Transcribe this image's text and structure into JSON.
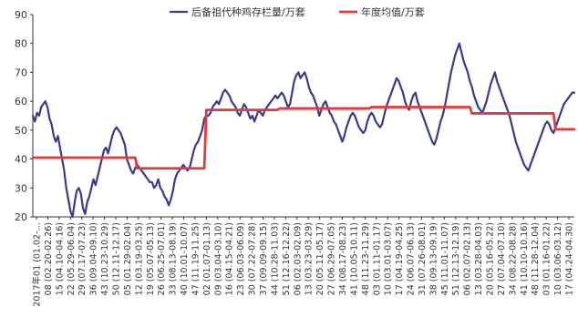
{
  "chart_data": {
    "type": "line",
    "title": "",
    "xlabel": "",
    "ylabel": "",
    "ylim": [
      20,
      90
    ],
    "yticks": [
      20,
      30,
      40,
      50,
      60,
      70,
      80,
      90
    ],
    "grid": false,
    "legend_position": "top-right",
    "x_tick_labels": [
      "2017年01 (01.02-…",
      "08 (02.20-02.26)",
      "15 (04.10-04.16)",
      "22 (05.29-06.04)",
      "29 (07.17-07.23)",
      "36 (09.04-09.10)",
      "43 (10.23-10.29)",
      "50 (12.11-12.17)",
      "05 (01.29-02.04)",
      "12 (03.19-03.25)",
      "19 (05.07-05.13)",
      "26 (06.25-07.01)",
      "33 (08.13-08.19)",
      "40 (10.01-10.07)",
      "47 (11.19-11.25)",
      "02 (01.07-01.13)",
      "09 (03.04-03.10)",
      "16 (04.15-04.21)",
      "23 (06.03-06.09)",
      "30 (07.22-07.28)",
      "37 (09.09-09.15)",
      "44 (10.28-11.03)",
      "51 (12.16-12.22)",
      "06 (02.03-02.09)",
      "13 (03.23-03.29)",
      "20 (05.11-05.17)",
      "27 (06.29-07.05)",
      "34 (08.17-08.23)",
      "41 (10.05-10.11)",
      "48 (11.23-11.29)",
      "03 (01.11-01.17)",
      "10 (03.01-03.07)",
      "17 (04.19-04.25)",
      "24 (06.07-06.13)",
      "31 (07.26-08.01)",
      "38 (09.13-09.19)",
      "45 (11.01-11.07)",
      "51 (12.13-12.19)",
      "06 (02.07-02.13)",
      "13 (03.28-04.03)",
      "20 (05.16-05.22)",
      "27 (07.04-07.10)",
      "34 (08.22-08.28)",
      "41 (10.10-10.16)",
      "48 (11.28-12.04)",
      "03 (01.16-01.22)",
      "10 (03.06-03.12)",
      "17 (04.24-04.30)"
    ],
    "series": [
      {
        "name": "后备祖代种鸡存栏量/万套",
        "color": "#3a3a8c",
        "values": [
          55,
          53,
          56,
          55,
          58,
          59,
          60,
          58,
          54,
          52,
          48,
          46,
          48,
          44,
          40,
          36,
          30,
          26,
          22,
          20,
          25,
          29,
          30,
          28,
          23,
          21,
          25,
          27,
          30,
          33,
          31,
          34,
          37,
          40,
          43,
          44,
          42,
          45,
          48,
          50,
          51,
          50,
          49,
          47,
          45,
          40,
          38,
          36,
          35,
          37,
          38,
          37,
          36,
          35,
          34,
          33,
          32,
          32,
          30,
          31,
          33,
          30,
          29,
          27,
          26,
          24,
          26,
          29,
          33,
          35,
          36,
          37,
          38,
          37,
          36,
          37,
          40,
          43,
          45,
          46,
          48,
          50,
          54,
          55,
          55,
          56,
          58,
          59,
          60,
          59,
          61,
          63,
          64,
          63,
          62,
          60,
          59,
          58,
          56,
          55,
          57,
          59,
          58,
          56,
          54,
          55,
          53,
          55,
          57,
          56,
          55,
          57,
          58,
          59,
          60,
          61,
          62,
          61,
          62,
          63,
          62,
          60,
          58,
          59,
          63,
          67,
          69,
          70,
          68,
          69,
          70,
          68,
          65,
          63,
          62,
          60,
          58,
          55,
          57,
          59,
          60,
          58,
          56,
          55,
          53,
          52,
          50,
          48,
          46,
          48,
          51,
          53,
          55,
          56,
          55,
          53,
          51,
          50,
          49,
          50,
          53,
          55,
          56,
          55,
          53,
          52,
          51,
          52,
          55,
          58,
          60,
          62,
          64,
          66,
          68,
          67,
          65,
          63,
          60,
          58,
          57,
          60,
          62,
          63,
          60,
          58,
          56,
          54,
          52,
          50,
          48,
          46,
          45,
          47,
          50,
          53,
          55,
          58,
          62,
          66,
          70,
          73,
          76,
          78,
          80,
          77,
          74,
          72,
          70,
          67,
          65,
          62,
          60,
          58,
          57,
          56,
          58,
          60,
          63,
          66,
          68,
          70,
          67,
          65,
          63,
          61,
          59,
          57,
          55,
          52,
          49,
          46,
          44,
          42,
          40,
          38,
          37,
          36,
          38,
          40,
          42,
          44,
          46,
          48,
          50,
          52,
          53,
          52,
          50,
          49,
          51,
          53,
          55,
          57,
          59,
          60,
          61,
          62,
          63,
          63
        ]
      },
      {
        "name": "年度均值/万套",
        "color": "#e03a3a",
        "values": [
          40.5,
          40.5,
          40.5,
          40.5,
          40.5,
          40.5,
          40.5,
          40.5,
          40.5,
          40.5,
          40.5,
          40.5,
          40.5,
          40.5,
          40.5,
          40.5,
          40.5,
          40.5,
          40.5,
          40.5,
          40.5,
          40.5,
          40.5,
          40.5,
          40.5,
          40.5,
          40.5,
          40.5,
          40.5,
          40.5,
          40.5,
          40.5,
          40.5,
          40.5,
          40.5,
          40.5,
          40.5,
          40.5,
          40.5,
          40.5,
          40.5,
          40.5,
          40.5,
          40.5,
          40.5,
          40.5,
          40.5,
          40.5,
          40.5,
          40.5,
          36.8,
          36.8,
          36.8,
          36.8,
          36.8,
          36.8,
          36.8,
          36.8,
          36.8,
          36.8,
          36.8,
          36.8,
          36.8,
          36.8,
          36.8,
          36.8,
          36.8,
          36.8,
          36.8,
          36.8,
          36.8,
          36.8,
          36.8,
          36.8,
          36.8,
          36.8,
          36.8,
          36.8,
          36.8,
          36.8,
          36.8,
          36.8,
          36.8,
          57.0,
          57.0,
          57.0,
          57.0,
          57.0,
          57.0,
          57.0,
          57.0,
          57.0,
          57.0,
          57.0,
          57.0,
          57.0,
          57.0,
          57.0,
          57.0,
          57.0,
          57.0,
          57.0,
          57.0,
          57.0,
          57.0,
          57.0,
          57.0,
          57.0,
          57.0,
          57.0,
          57.0,
          57.0,
          57.0,
          57.0,
          57.0,
          57.0,
          57.0,
          57.0,
          57.5,
          57.5,
          57.5,
          57.5,
          57.5,
          57.5,
          57.5,
          57.5,
          57.5,
          57.5,
          57.5,
          57.5,
          57.5,
          57.5,
          57.5,
          57.5,
          57.5,
          57.5,
          57.5,
          57.5,
          57.5,
          57.5,
          57.5,
          57.5,
          57.5,
          57.5,
          57.5,
          57.5,
          57.5,
          57.5,
          57.5,
          57.5,
          57.5,
          57.5,
          57.5,
          57.5,
          57.5,
          57.5,
          57.5,
          57.5,
          57.5,
          57.5,
          57.5,
          57.5,
          58.0,
          58.0,
          58.0,
          58.0,
          58.0,
          58.0,
          58.0,
          58.0,
          58.0,
          58.0,
          58.0,
          58.0,
          58.0,
          58.0,
          58.0,
          58.0,
          58.0,
          58.0,
          58.0,
          58.0,
          58.0,
          58.0,
          58.0,
          58.0,
          58.0,
          58.0,
          58.0,
          58.0,
          58.0,
          58.0,
          58.0,
          58.0,
          58.0,
          58.0,
          58.0,
          58.0,
          58.0,
          58.0,
          58.0,
          58.0,
          58.0,
          58.0,
          58.0,
          58.0,
          58.0,
          58.0,
          58.0,
          58.0,
          55.8,
          55.8,
          55.8,
          55.8,
          55.8,
          55.8,
          55.8,
          55.8,
          55.8,
          55.8,
          55.8,
          55.8,
          55.8,
          55.8,
          55.8,
          55.8,
          55.8,
          55.8,
          55.8,
          55.8,
          55.8,
          55.8,
          55.8,
          55.8,
          55.8,
          55.8,
          55.8,
          55.8,
          55.8,
          55.8,
          55.8,
          55.8,
          55.8,
          55.8,
          55.8,
          55.8,
          55.8,
          55.8,
          55.8,
          55.8,
          50.3,
          50.3,
          50.3,
          50.3,
          50.3,
          50.3,
          50.3,
          50.3,
          50.3,
          50.3
        ]
      }
    ]
  }
}
